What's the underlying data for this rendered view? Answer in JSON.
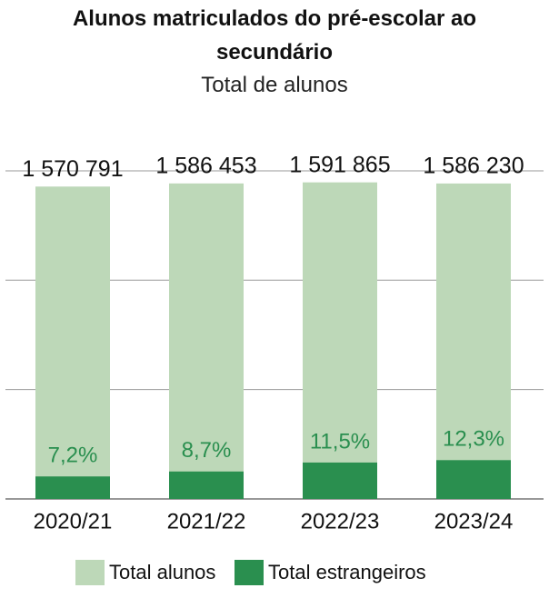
{
  "chart_data": {
    "type": "bar",
    "title": "Alunos matriculados do pré-escolar ao secundário",
    "subtitle": "Total de alunos",
    "categories": [
      "2020/21",
      "2021/22",
      "2022/23",
      "2023/24"
    ],
    "series": [
      {
        "name": "Total alunos",
        "color": "#bdd8b8",
        "values": [
          1570791,
          1586453,
          1591865,
          1586230
        ],
        "value_labels": [
          "1 570 791",
          "1 586 453",
          "1 591 865",
          "1 586 230"
        ]
      },
      {
        "name": "Total estrangeiros",
        "color": "#2a8f4f",
        "values": [
          7.2,
          8.7,
          11.5,
          12.3
        ],
        "value_labels": [
          "7,2%",
          "8,7%",
          "11,5%",
          "12,3%"
        ]
      }
    ],
    "ylim": [
      0,
      1700000
    ],
    "yticks": [
      0,
      550000,
      1100000,
      1650000
    ],
    "grid": true
  }
}
